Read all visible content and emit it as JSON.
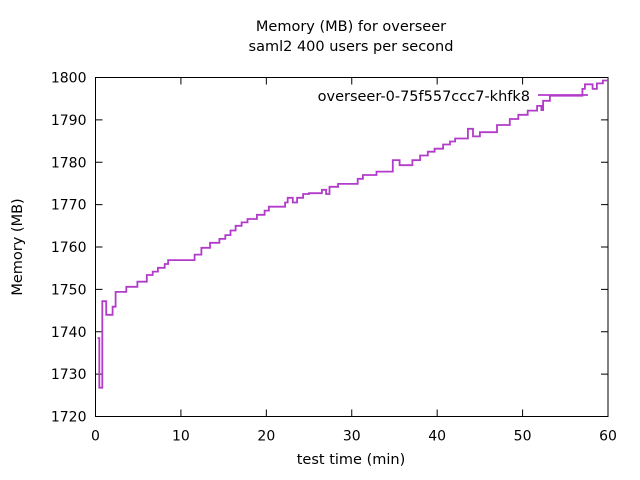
{
  "title": {
    "line1": "Memory (MB) for overseer",
    "line2": "saml2 400 users per second"
  },
  "axes": {
    "ylabel": "Memory (MB)",
    "xlabel": "test time (min)"
  },
  "legend": {
    "series_label": "overseer-0-75f557ccc7-khfk8"
  },
  "colors": {
    "line": "#b23cc9",
    "axis": "#000000",
    "background": "#ffffff"
  },
  "chart_data": {
    "type": "line",
    "title": "Memory (MB) for overseer",
    "subtitle": "saml2 400 users per second",
    "xlabel": "test time (min)",
    "ylabel": "Memory (MB)",
    "xlim": [
      0,
      60
    ],
    "ylim": [
      1720,
      1800
    ],
    "xticks": [
      0,
      10,
      20,
      30,
      40,
      50,
      60
    ],
    "yticks": [
      1720,
      1730,
      1740,
      1750,
      1760,
      1770,
      1780,
      1790,
      1800
    ],
    "grid": false,
    "legend_position": "top-right-inside",
    "interpolation": "step-after",
    "series": [
      {
        "name": "overseer-0-75f557ccc7-khfk8",
        "color": "#b23cc9",
        "points": [
          [
            0.25,
            1738.5
          ],
          [
            0.45,
            1726.8
          ],
          [
            0.8,
            1747.2
          ],
          [
            1.25,
            1744.0
          ],
          [
            2.0,
            1745.9
          ],
          [
            2.35,
            1749.4
          ],
          [
            3.6,
            1750.6
          ],
          [
            4.9,
            1751.8
          ],
          [
            6.0,
            1753.4
          ],
          [
            6.7,
            1754.2
          ],
          [
            7.3,
            1755.1
          ],
          [
            8.1,
            1756.0
          ],
          [
            8.5,
            1756.9
          ],
          [
            11.6,
            1758.2
          ],
          [
            12.4,
            1759.8
          ],
          [
            13.4,
            1761.0
          ],
          [
            14.5,
            1761.9
          ],
          [
            15.2,
            1762.8
          ],
          [
            15.8,
            1763.9
          ],
          [
            16.4,
            1765.0
          ],
          [
            17.1,
            1765.8
          ],
          [
            17.8,
            1766.6
          ],
          [
            18.9,
            1767.6
          ],
          [
            19.8,
            1768.6
          ],
          [
            20.3,
            1769.5
          ],
          [
            22.2,
            1770.5
          ],
          [
            22.5,
            1771.6
          ],
          [
            23.1,
            1770.5
          ],
          [
            23.6,
            1771.6
          ],
          [
            24.3,
            1772.5
          ],
          [
            25.0,
            1772.7
          ],
          [
            26.5,
            1773.5
          ],
          [
            27.0,
            1772.5
          ],
          [
            27.4,
            1774.2
          ],
          [
            28.4,
            1774.9
          ],
          [
            30.7,
            1776.1
          ],
          [
            31.3,
            1777.0
          ],
          [
            32.9,
            1777.8
          ],
          [
            34.8,
            1780.5
          ],
          [
            35.6,
            1779.3
          ],
          [
            37.1,
            1780.5
          ],
          [
            38.0,
            1781.6
          ],
          [
            38.9,
            1782.5
          ],
          [
            39.7,
            1783.2
          ],
          [
            40.7,
            1784.2
          ],
          [
            41.5,
            1784.9
          ],
          [
            42.1,
            1785.6
          ],
          [
            43.6,
            1787.9
          ],
          [
            44.2,
            1786.1
          ],
          [
            45.0,
            1787.1
          ],
          [
            47.0,
            1788.8
          ],
          [
            48.5,
            1790.2
          ],
          [
            49.5,
            1791.2
          ],
          [
            50.6,
            1792.2
          ],
          [
            51.7,
            1793.3
          ],
          [
            52.2,
            1792.3
          ],
          [
            52.4,
            1794.5
          ],
          [
            53.2,
            1795.7
          ],
          [
            57.0,
            1797.3
          ],
          [
            57.3,
            1798.4
          ],
          [
            58.2,
            1797.3
          ],
          [
            58.7,
            1798.6
          ],
          [
            59.4,
            1799.3
          ],
          [
            60.0,
            1799.3
          ]
        ]
      }
    ]
  }
}
